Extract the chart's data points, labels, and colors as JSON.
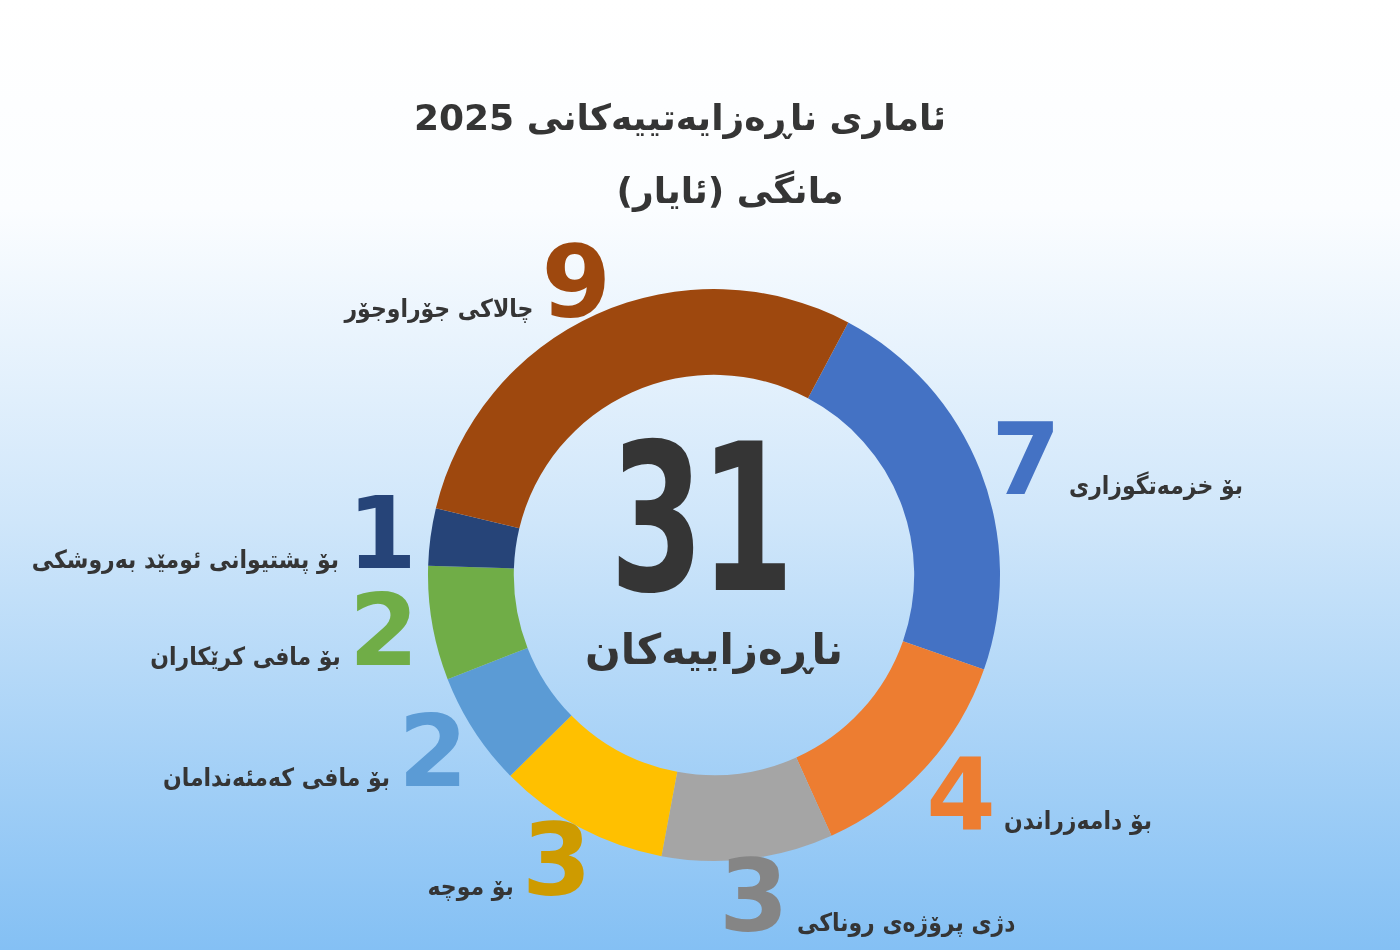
{
  "chart_data": {
    "type": "donut",
    "title": "ئاماری ناڕەزایەتییەکانی 2025",
    "subtitle": "مانگی (ئایار)",
    "categories": [
      "بۆ خزمەتگوزاری",
      "بۆ دامەزراندن",
      "دژی پرۆژەی روناکی",
      "بۆ موچە",
      "بۆ مافی کەمئەندامان",
      "بۆ مافی کرێکاران",
      "بۆ پشتیوانی ئومێد بەروشکی",
      "چالاکی جۆراوجۆر"
    ],
    "values": [
      7,
      4,
      3,
      3,
      2,
      2,
      1,
      9
    ],
    "colors": [
      "#4472c4",
      "#ed7d31",
      "#a5a5a5",
      "#ffc000",
      "#5b9bd5",
      "#70ad47",
      "#264478",
      "#9e480e"
    ],
    "data_labels": true,
    "annotations": [
      "31",
      "ناڕەزاییەکان"
    ]
  }
}
